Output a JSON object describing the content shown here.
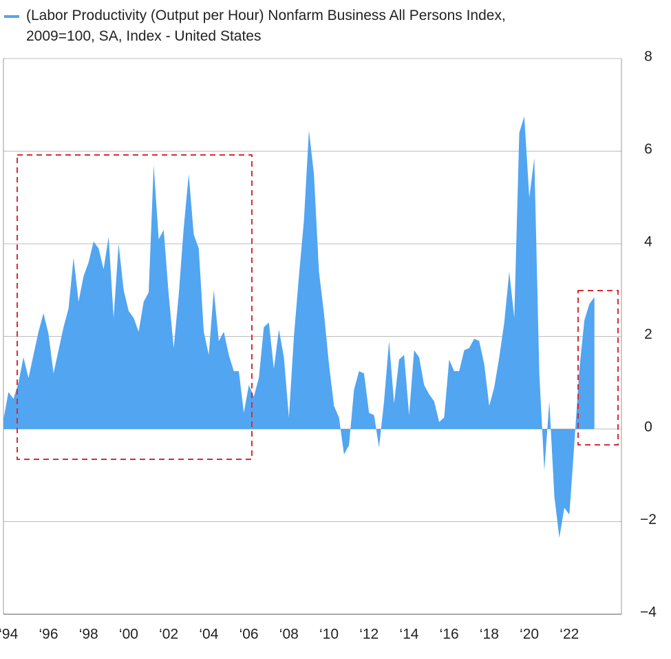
{
  "chart_data": {
    "type": "area",
    "x": [
      1993.75,
      1994,
      1994.25,
      1994.5,
      1994.75,
      1995,
      1995.25,
      1995.5,
      1995.75,
      1996,
      1996.25,
      1996.5,
      1996.75,
      1997,
      1997.25,
      1997.5,
      1997.75,
      1998,
      1998.25,
      1998.5,
      1998.75,
      1999,
      1999.25,
      1999.5,
      1999.75,
      2000,
      2000.25,
      2000.5,
      2000.75,
      2001,
      2001.25,
      2001.5,
      2001.75,
      2002,
      2002.25,
      2002.5,
      2002.75,
      2003,
      2003.25,
      2003.5,
      2003.75,
      2004,
      2004.25,
      2004.5,
      2004.75,
      2005,
      2005.25,
      2005.5,
      2005.75,
      2006,
      2006.25,
      2006.5,
      2006.75,
      2007,
      2007.25,
      2007.5,
      2007.75,
      2008,
      2008.25,
      2008.5,
      2008.75,
      2009,
      2009.25,
      2009.5,
      2009.75,
      2010,
      2010.25,
      2010.5,
      2010.75,
      2011,
      2011.25,
      2011.5,
      2011.75,
      2012,
      2012.25,
      2012.5,
      2012.75,
      2013,
      2013.25,
      2013.5,
      2013.75,
      2014,
      2014.25,
      2014.5,
      2014.75,
      2015,
      2015.25,
      2015.5,
      2015.75,
      2016,
      2016.25,
      2016.5,
      2016.75,
      2017,
      2017.25,
      2017.5,
      2017.75,
      2018,
      2018.25,
      2018.5,
      2018.75,
      2019,
      2019.25,
      2019.5,
      2019.75,
      2020,
      2020.25,
      2020.5,
      2020.75,
      2021,
      2021.25,
      2021.5,
      2021.75,
      2022,
      2022.25,
      2022.5,
      2022.75,
      2023,
      2023.25
    ],
    "series": [
      {
        "name": "(Labor Productivity (Output per Hour) Nonfarm Business All Persons Index, 2009=100, SA, Index - United States",
        "color": "#52a5f0",
        "values": [
          0.2,
          0.8,
          0.65,
          1.0,
          1.55,
          1.1,
          1.6,
          2.1,
          2.5,
          2.05,
          1.2,
          1.7,
          2.2,
          2.6,
          3.7,
          2.75,
          3.3,
          3.6,
          4.05,
          3.9,
          3.45,
          4.15,
          2.4,
          4.0,
          3.0,
          2.55,
          2.4,
          2.1,
          2.75,
          2.95,
          5.7,
          4.1,
          4.3,
          2.9,
          1.75,
          2.9,
          4.35,
          5.5,
          4.2,
          3.9,
          2.1,
          1.6,
          3.0,
          1.9,
          2.1,
          1.6,
          1.25,
          1.25,
          0.35,
          0.95,
          0.7,
          1.1,
          2.2,
          2.3,
          1.3,
          2.15,
          1.55,
          0.25,
          2.0,
          3.3,
          4.5,
          6.45,
          5.5,
          3.4,
          2.5,
          1.4,
          0.5,
          0.25,
          -0.55,
          -0.35,
          0.85,
          1.25,
          1.2,
          0.35,
          0.3,
          -0.4,
          0.6,
          1.9,
          0.55,
          1.5,
          1.6,
          0.3,
          1.7,
          1.55,
          0.95,
          0.75,
          0.6,
          0.15,
          0.25,
          1.5,
          1.25,
          1.25,
          1.7,
          1.75,
          1.95,
          1.9,
          1.4,
          0.5,
          0.9,
          1.55,
          2.3,
          3.4,
          2.4,
          6.4,
          6.75,
          5.0,
          5.85,
          1.2,
          -0.9,
          0.6,
          -1.45,
          -2.35,
          -1.7,
          -1.85,
          -0.3,
          1.3,
          2.35,
          2.7,
          2.85
        ]
      }
    ],
    "xlim": [
      1993.75,
      2024.6
    ],
    "xticks": [
      {
        "value": 1994,
        "label": "‘94"
      },
      {
        "value": 1996,
        "label": "‘96"
      },
      {
        "value": 1998,
        "label": "‘98"
      },
      {
        "value": 2000,
        "label": "‘00"
      },
      {
        "value": 2002,
        "label": "‘02"
      },
      {
        "value": 2004,
        "label": "‘04"
      },
      {
        "value": 2006,
        "label": "‘06"
      },
      {
        "value": 2008,
        "label": "‘08"
      },
      {
        "value": 2010,
        "label": "‘10"
      },
      {
        "value": 2012,
        "label": "‘12"
      },
      {
        "value": 2014,
        "label": "‘14"
      },
      {
        "value": 2016,
        "label": "‘16"
      },
      {
        "value": 2018,
        "label": "‘18"
      },
      {
        "value": 2020,
        "label": "‘20"
      },
      {
        "value": 2022,
        "label": "‘22"
      }
    ],
    "ylim": [
      -4,
      8
    ],
    "yticks": [
      {
        "value": -4,
        "label": "−4"
      },
      {
        "value": -2,
        "label": "−2"
      },
      0,
      2,
      4,
      6,
      8
    ],
    "grid": true
  }
}
